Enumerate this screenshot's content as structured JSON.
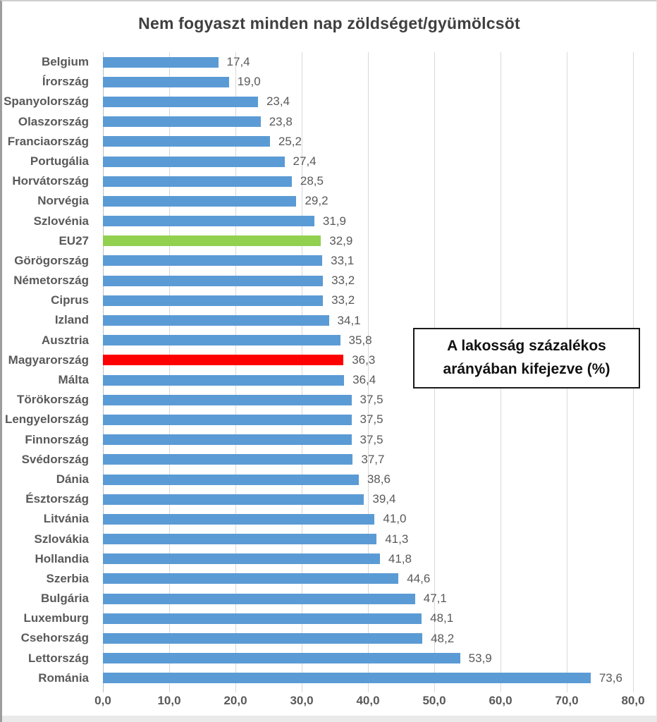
{
  "chart_data": {
    "type": "bar",
    "orientation": "horizontal",
    "title": "Nem fogyaszt minden nap zöldséget/gyümölcsöt",
    "categories": [
      "Belgium",
      "Írország",
      "Spanyolország",
      "Olaszország",
      "Franciaország",
      "Portugália",
      "Horvátország",
      "Norvégia",
      "Szlovénia",
      "EU27",
      "Görögország",
      "Németország",
      "Ciprus",
      "Izland",
      "Ausztria",
      "Magyarország",
      "Málta",
      "Törökország",
      "Lengyelország",
      "Finnország",
      "Svédország",
      "Dánia",
      "Észtország",
      "Litvánia",
      "Szlovákia",
      "Hollandia",
      "Szerbia",
      "Bulgária",
      "Luxemburg",
      "Csehország",
      "Lettország",
      "Románia"
    ],
    "values": [
      17.4,
      19.0,
      23.4,
      23.8,
      25.2,
      27.4,
      28.5,
      29.2,
      31.9,
      32.9,
      33.1,
      33.2,
      33.2,
      34.1,
      35.8,
      36.3,
      36.4,
      37.5,
      37.5,
      37.5,
      37.7,
      38.6,
      39.4,
      41.0,
      41.3,
      41.8,
      44.6,
      47.1,
      48.1,
      48.2,
      53.9,
      73.6
    ],
    "value_labels": [
      "17,4",
      "19,0",
      "23,4",
      "23,8",
      "25,2",
      "27,4",
      "28,5",
      "29,2",
      "31,9",
      "32,9",
      "33,1",
      "33,2",
      "33,2",
      "34,1",
      "35,8",
      "36,3",
      "36,4",
      "37,5",
      "37,5",
      "37,5",
      "37,7",
      "38,6",
      "39,4",
      "41,0",
      "41,3",
      "41,8",
      "44,6",
      "47,1",
      "48,1",
      "48,2",
      "53,9",
      "73,6"
    ],
    "xlim": [
      0,
      80
    ],
    "x_ticks": [
      0,
      10,
      20,
      30,
      40,
      50,
      60,
      70,
      80
    ],
    "x_tick_labels": [
      "0,0",
      "10,0",
      "20,0",
      "30,0",
      "40,0",
      "50,0",
      "60,0",
      "70,0",
      "80,0"
    ],
    "grid": "vertical-only",
    "legend": "none",
    "bar_color_default": "#5b9bd5",
    "highlights": {
      "EU27": "#92d050",
      "Magyarország": "#ff0000"
    },
    "annotation": {
      "line1": "A lakosság százalékos",
      "line2": "arányában kifejezve (%)"
    }
  },
  "colors": {
    "title_text": "#3f3f3f",
    "label_text": "#595959",
    "gridline": "#d9d9d9",
    "axis_line": "#bfbfbf",
    "annotation_border": "#1a1a1a",
    "background": "#ffffff"
  }
}
